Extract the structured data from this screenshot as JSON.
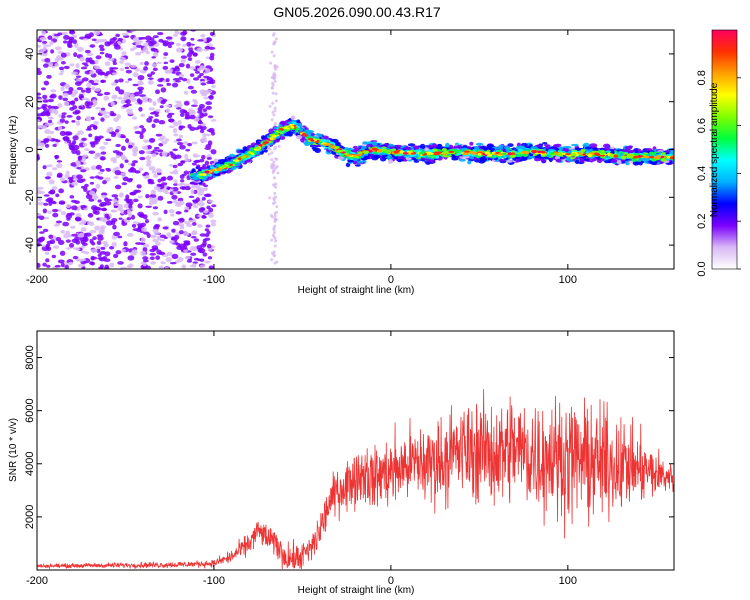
{
  "title": "GN05.2026.090.00.43.R17",
  "chart_data": [
    {
      "type": "heatmap",
      "xlabel": "Height of straight line (km)",
      "ylabel": "Frequency (Hz)",
      "xlim": [
        -200,
        160
      ],
      "ylim": [
        -50,
        50
      ],
      "xticks": [
        "-200",
        "-100",
        "0",
        "100"
      ],
      "yticks": [
        "-40",
        "-20",
        "0",
        "20",
        "40"
      ],
      "colorbar": {
        "label": "Normalized spectral amplitude",
        "range": [
          0,
          1
        ],
        "ticks": [
          "0.0",
          "0.2",
          "0.4",
          "0.6",
          "0.8"
        ],
        "colors": [
          "#ffffff",
          "#d8b8f5",
          "#7b00ff",
          "#0000ff",
          "#00b0ff",
          "#00ffff",
          "#00ff40",
          "#80ff00",
          "#ffff00",
          "#ffa000",
          "#ff3000",
          "#ff0060"
        ]
      },
      "ridge": {
        "x": [
          -200,
          -120,
          -110,
          -100,
          -90,
          -80,
          -70,
          -62,
          -55,
          -50,
          -45,
          -40,
          -35,
          -30,
          -25,
          -20,
          -15,
          -10,
          0,
          20,
          40,
          60,
          80,
          100,
          120,
          140,
          160
        ],
        "y": [
          -12,
          -12,
          -11,
          -9,
          -6,
          -2,
          3,
          8,
          10,
          7,
          4,
          3,
          2,
          0,
          -2,
          -3,
          -1,
          0,
          -1,
          -2,
          -1,
          -2,
          -1,
          -2,
          -2,
          -3,
          -3
        ]
      },
      "noise_region": [
        -200,
        -100
      ]
    },
    {
      "type": "line",
      "xlabel": "Height of straight line (km)",
      "ylabel": "SNR (10 * v/v)",
      "xlim": [
        -200,
        160
      ],
      "ylim": [
        0,
        9000
      ],
      "xticks": [
        "-200",
        "-100",
        "0",
        "100"
      ],
      "yticks": [
        "2000",
        "4000",
        "6000",
        "8000"
      ],
      "color": "#ee3333",
      "envelope": {
        "x": [
          -200,
          -120,
          -100,
          -90,
          -80,
          -75,
          -70,
          -65,
          -60,
          -55,
          -50,
          -45,
          -40,
          -35,
          -30,
          -25,
          -20,
          -15,
          -10,
          -5,
          0,
          10,
          20,
          30,
          40,
          50,
          60,
          70,
          80,
          90,
          100,
          110,
          120,
          130,
          140,
          150,
          160
        ],
        "y": [
          150,
          200,
          250,
          500,
          1000,
          1500,
          1200,
          1000,
          500,
          400,
          500,
          800,
          1500,
          2500,
          3000,
          3200,
          3500,
          3700,
          3400,
          3600,
          3700,
          4000,
          4000,
          4200,
          4500,
          4500,
          4400,
          4600,
          4300,
          4300,
          4200,
          4100,
          4000,
          4000,
          3800,
          3600,
          3500
        ]
      },
      "spread": {
        "x": [
          -200,
          -100,
          -80,
          -60,
          -40,
          -20,
          0,
          20,
          40,
          60,
          80,
          100,
          120,
          140,
          160
        ],
        "y": [
          80,
          150,
          500,
          600,
          800,
          1200,
          1500,
          1800,
          2000,
          2300,
          2500,
          2500,
          2400,
          1500,
          600
        ]
      }
    }
  ]
}
